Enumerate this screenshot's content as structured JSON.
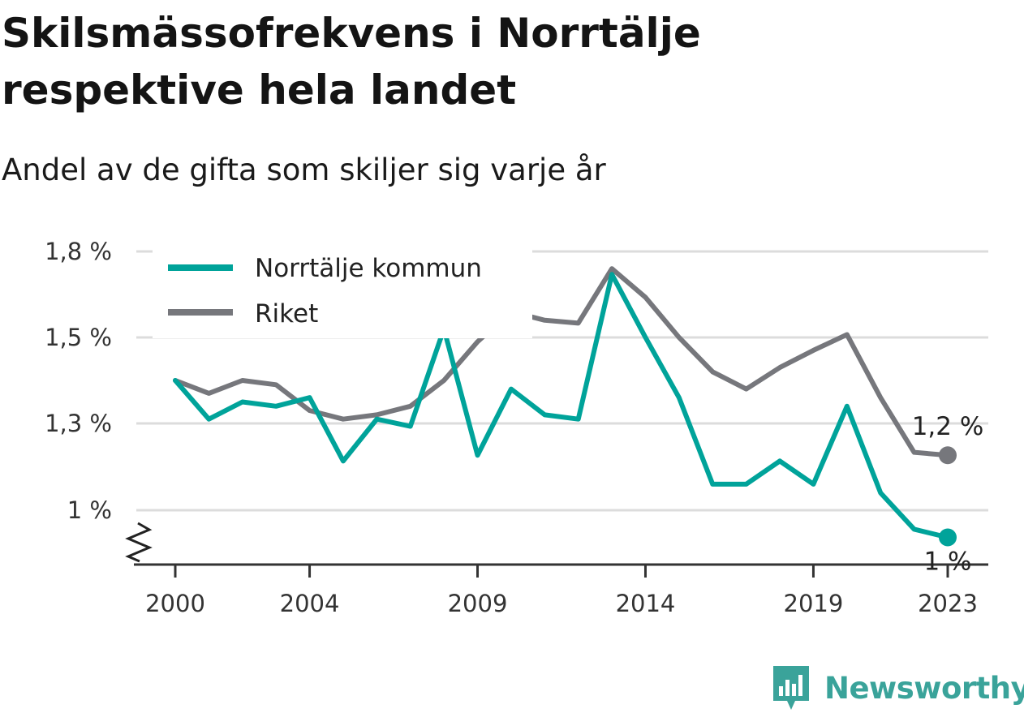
{
  "header": {
    "title": "Skilsmässofrekvens i Norrtälje respektive hela landet",
    "subtitle": "Andel av de gifta som skiljer sig varje år"
  },
  "brand": {
    "name": "Newsworthy",
    "icon": "newsworthy-logo-icon",
    "color": "#3aa39a"
  },
  "chart_data": {
    "type": "line",
    "x": [
      2000,
      2001,
      2002,
      2003,
      2004,
      2005,
      2006,
      2007,
      2008,
      2009,
      2010,
      2011,
      2012,
      2013,
      2014,
      2015,
      2016,
      2017,
      2018,
      2019,
      2020,
      2021,
      2022,
      2023
    ],
    "x_ticks": [
      2000,
      2004,
      2009,
      2014,
      2019,
      2023
    ],
    "x_tick_labels": [
      "2000",
      "2004",
      "2009",
      "2014",
      "2019",
      "2023"
    ],
    "y_ticks": [
      1.0,
      1.3,
      1.5,
      1.8
    ],
    "y_tick_labels": [
      "1 %",
      "1,3 %",
      "1,5 %",
      "1,8 %"
    ],
    "ylim": [
      0.8,
      1.8
    ],
    "y_axis_break": true,
    "grid": "horizontal",
    "legend_position": "top-left",
    "series": [
      {
        "name": "Norrtälje kommun",
        "color": "#00a39a",
        "values": [
          1.4,
          1.31,
          1.35,
          1.34,
          1.36,
          1.17,
          1.31,
          1.29,
          1.53,
          1.19,
          1.38,
          1.32,
          1.31,
          1.72,
          1.5,
          1.36,
          1.09,
          1.09,
          1.17,
          1.09,
          1.34,
          1.06,
          0.93,
          0.9
        ],
        "end_label": "1 %"
      },
      {
        "name": "Riket",
        "color": "#76777c",
        "values": [
          1.4,
          1.37,
          1.4,
          1.39,
          1.33,
          1.31,
          1.32,
          1.34,
          1.4,
          1.49,
          1.59,
          1.56,
          1.55,
          1.74,
          1.64,
          1.5,
          1.42,
          1.38,
          1.43,
          1.47,
          1.51,
          1.36,
          1.2,
          1.19
        ],
        "end_label": "1,2 %"
      }
    ]
  }
}
